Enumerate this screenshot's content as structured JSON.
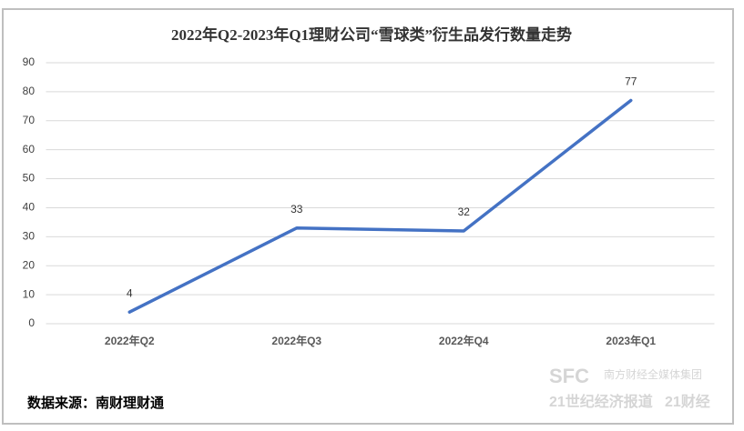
{
  "chart_data": {
    "type": "line",
    "title": "2022年Q2-2023年Q1理财公司“雪球类”衍生品发行数量走势",
    "categories": [
      "2022年Q2",
      "2022年Q3",
      "2022年Q4",
      "2023年Q1"
    ],
    "values": [
      4,
      33,
      32,
      77
    ],
    "color": "#4472c4",
    "ylim": [
      0,
      90
    ],
    "yticks": [
      0,
      10,
      20,
      30,
      40,
      50,
      60,
      70,
      80,
      90
    ],
    "grid": true,
    "data_labels": true
  },
  "source": "数据来源：南财理财通",
  "watermark": {
    "logo": "SFC",
    "group": "南方财经全媒体集团",
    "paper": "21世纪经济报道",
    "brand": "21财经"
  }
}
